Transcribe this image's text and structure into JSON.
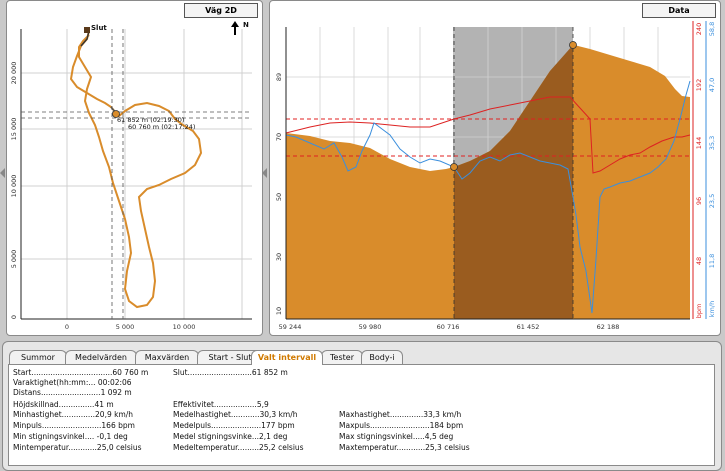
{
  "panels": {
    "map_title": "Väg 2D",
    "data_title": "Data"
  },
  "map": {
    "finish_label": "Slut",
    "north_label": "N",
    "cursor_label_1": "61 852 m (02:19:30)",
    "cursor_label_2": "60 760 m (02:17:24)",
    "x_ticks": [
      "0",
      "5 000",
      "10 000"
    ],
    "y_ticks": [
      "20 000",
      "15 000",
      "10 000",
      "5 000",
      "0"
    ]
  },
  "chart_data": {
    "type": "area",
    "x_ticks": [
      "59 244",
      "59 980",
      "60 716",
      "61 452",
      "62 188"
    ],
    "left_axis_ticks": [
      "89",
      "70",
      "50",
      "30",
      "10"
    ],
    "bpm_ticks": [
      "240",
      "192",
      "144",
      "96",
      "48"
    ],
    "bpm_label": "bpm",
    "kmh_ticks": [
      "58,8",
      "47,0",
      "35,3",
      "23,5",
      "11,8"
    ],
    "kmh_label": "km/h",
    "selected_interval": [
      "60 760 m",
      "61 852 m"
    ],
    "series": [
      {
        "color": "#d98c2b"
      },
      {
        "color": "#dd2222"
      },
      {
        "color": "#3b8fdd"
      }
    ]
  },
  "tabs": [
    "Summor",
    "Medelvärden",
    "Maxvärden",
    "Start - Slut",
    "Valt intervall",
    "Tester",
    "Body-i"
  ],
  "active_tab": "Valt intervall",
  "stats": {
    "start": "Start..................................60 760 m",
    "slut": "Slut...........................61 852 m",
    "duration": "Varaktighet(hh:mm:... 00:02:06",
    "distans": "Distans.........................1 092 m",
    "hojd": "Höjdskillnad...............41 m",
    "effekt": "Effektivitet..................5,9",
    "minhast": "Minhastighet..............20,9 km/h",
    "medelhast": "Medelhastighet............30,3 km/h",
    "maxhast": "Maxhastighet..............33,3 km/h",
    "minpuls": "Minpuls.........................166 bpm",
    "medelpuls": "Medelpuls.....................177 bpm",
    "maxpuls": "Maxpuls.........................184 bpm",
    "minsting": "Min stigningsvinkel.... -0,1 deg",
    "medelsting": "Medel stigningsvinke...2,1 deg",
    "maxsting": "Max stigningsvinkel.....4,5 deg",
    "mintemp": "Mintemperatur............25,0 celsius",
    "medeltemp": "Medeltemperatur.........25,2 celsius",
    "maxtemp": "Maxtemperatur............25,3 celsius"
  }
}
